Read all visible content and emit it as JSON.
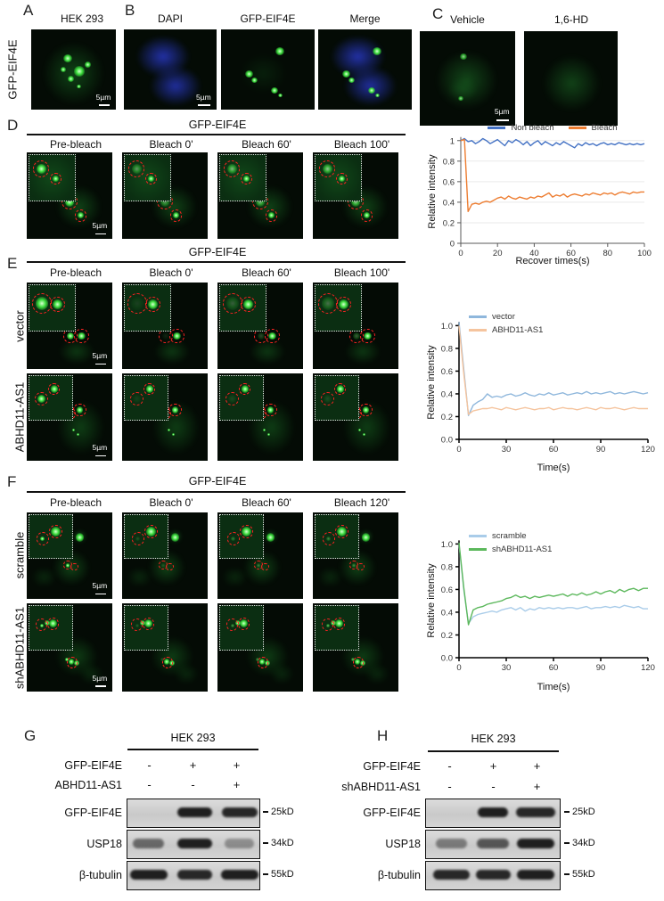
{
  "figure": {
    "scale_bar_label": "5µm",
    "colors": {
      "gfp_green": "#3ede3e",
      "dapi_blue": "#2b3bd0",
      "bleach_ring_red": "#ff2222"
    },
    "panels": {
      "A": {
        "letter": "A",
        "title": "HEK 293",
        "side_label": "GFP-EIF4E",
        "scale_bar": "5µm"
      },
      "B": {
        "letter": "B",
        "titles": [
          "DAPI",
          "GFP-EIF4E",
          "Merge"
        ],
        "scale_bar": "5µm"
      },
      "C": {
        "letter": "C",
        "titles": [
          "Vehicle",
          "1,6-HD"
        ],
        "scale_bar": "5µm"
      },
      "D": {
        "letter": "D",
        "header": "GFP-EIF4E",
        "columns": [
          "Pre-bleach",
          "Bleach 0'",
          "Bleach 60'",
          "Bleach 100'"
        ],
        "scale_bar": "5µm"
      },
      "E": {
        "letter": "E",
        "header": "GFP-EIF4E",
        "columns": [
          "Pre-bleach",
          "Bleach 0'",
          "Bleach 60'",
          "Bleach 100'"
        ],
        "rows": [
          "vector",
          "ABHD11-AS1"
        ],
        "scale_bar": "5µm"
      },
      "F": {
        "letter": "F",
        "header": "GFP-EIF4E",
        "columns": [
          "Pre-bleach",
          "Bleach 0'",
          "Bleach 60'",
          "Bleach 120'"
        ],
        "rows": [
          "scramble",
          "shABHD11-AS1"
        ],
        "scale_bar": "5µm"
      },
      "G": {
        "letter": "G",
        "cell_line": "HEK 293",
        "conditions": [
          {
            "label": "GFP-EIF4E",
            "values": [
              "-",
              "+",
              "+"
            ]
          },
          {
            "label": "ABHD11-AS1",
            "values": [
              "-",
              "-",
              "+"
            ]
          }
        ],
        "strips": [
          {
            "label": "GFP-EIF4E",
            "marker": "25kD",
            "lanes": [
              [
                0,
                0
              ],
              [
                0.95,
                1.0
              ],
              [
                0.9,
                1.05
              ]
            ]
          },
          {
            "label": "USP18",
            "marker": "34kD",
            "lanes": [
              [
                0.55,
                0.9
              ],
              [
                0.95,
                1.0
              ],
              [
                0.35,
                0.85
              ]
            ]
          },
          {
            "label": "β-tubulin",
            "marker": "55kD",
            "lanes": [
              [
                0.95,
                1.1
              ],
              [
                0.9,
                1.0
              ],
              [
                0.95,
                1.1
              ]
            ]
          }
        ]
      },
      "H": {
        "letter": "H",
        "cell_line": "HEK 293",
        "conditions": [
          {
            "label": "GFP-EIF4E",
            "values": [
              "-",
              "+",
              "+"
            ]
          },
          {
            "label": "shABHD11-AS1",
            "values": [
              "-",
              "-",
              "+"
            ]
          }
        ],
        "strips": [
          {
            "label": "GFP-EIF4E",
            "marker": "25kD",
            "lanes": [
              [
                0,
                0
              ],
              [
                0.95,
                0.85
              ],
              [
                0.9,
                1.15
              ]
            ]
          },
          {
            "label": "USP18",
            "marker": "34kD",
            "lanes": [
              [
                0.45,
                0.9
              ],
              [
                0.65,
                0.9
              ],
              [
                0.95,
                1.1
              ]
            ]
          },
          {
            "label": "β-tubulin",
            "marker": "55kD",
            "lanes": [
              [
                0.9,
                1.05
              ],
              [
                0.9,
                1.0
              ],
              [
                0.95,
                1.1
              ]
            ]
          }
        ]
      }
    }
  },
  "chart_data": [
    {
      "type": "line",
      "title": "",
      "xlabel": "Recover times(s)",
      "ylabel": "Relative intensity",
      "xlim": [
        0,
        100
      ],
      "ylim": [
        0,
        1.05
      ],
      "xticks": [
        0,
        20,
        40,
        60,
        80,
        100
      ],
      "yticks": [
        0,
        0.2,
        0.4,
        0.6,
        0.8,
        1
      ],
      "ytick_labels": [
        "0",
        "0.2",
        "0.4",
        "0.6",
        "0.8",
        "1"
      ],
      "grid": true,
      "legend_position": "top",
      "x_start": 0,
      "x_step": 2,
      "series": [
        {
          "name": "Non bleach",
          "color": "#4472C4",
          "values": [
            1.0,
            1.02,
            0.99,
            1.0,
            0.97,
            0.99,
            1.02,
            1.0,
            0.97,
            0.99,
            1.01,
            0.98,
            0.95,
            1.0,
            0.98,
            1.01,
            0.99,
            0.96,
            0.99,
            0.95,
            0.98,
            1.0,
            0.96,
            0.99,
            0.97,
            0.95,
            0.98,
            0.96,
            0.99,
            0.97,
            0.95,
            0.93,
            0.97,
            0.95,
            0.98,
            0.96,
            0.97,
            0.95,
            0.97,
            0.98,
            0.96,
            0.97,
            0.96,
            0.98,
            0.97,
            0.96,
            0.97,
            0.96,
            0.97,
            0.96,
            0.97
          ]
        },
        {
          "name": "Bleach",
          "color": "#ED7D31",
          "values": [
            1.0,
            1.01,
            0.31,
            0.38,
            0.39,
            0.38,
            0.4,
            0.41,
            0.4,
            0.42,
            0.44,
            0.45,
            0.43,
            0.46,
            0.44,
            0.43,
            0.45,
            0.44,
            0.43,
            0.45,
            0.44,
            0.46,
            0.45,
            0.47,
            0.49,
            0.45,
            0.47,
            0.46,
            0.48,
            0.45,
            0.47,
            0.48,
            0.47,
            0.46,
            0.48,
            0.47,
            0.49,
            0.48,
            0.47,
            0.49,
            0.48,
            0.49,
            0.47,
            0.49,
            0.5,
            0.49,
            0.48,
            0.5,
            0.49,
            0.5,
            0.5
          ]
        }
      ]
    },
    {
      "type": "line",
      "title": "",
      "xlabel": "Time(s)",
      "ylabel": "Relative intensity",
      "xlim": [
        0,
        120
      ],
      "ylim": [
        0,
        1.05
      ],
      "xticks": [
        0,
        30,
        60,
        90,
        120
      ],
      "yticks": [
        0,
        0.2,
        0.4,
        0.6,
        0.8,
        1
      ],
      "ytick_labels": [
        "0.0",
        "0.2",
        "0.4",
        "0.6",
        "0.8",
        "1.0"
      ],
      "grid": false,
      "legend_position": "inside-top-left",
      "x_start": 0,
      "x_step": 3,
      "series": [
        {
          "name": "vector",
          "color": "#8FB7DC",
          "values": [
            1.03,
            0.62,
            0.21,
            0.3,
            0.33,
            0.35,
            0.4,
            0.37,
            0.38,
            0.37,
            0.39,
            0.4,
            0.38,
            0.39,
            0.41,
            0.39,
            0.38,
            0.4,
            0.39,
            0.41,
            0.39,
            0.4,
            0.41,
            0.39,
            0.4,
            0.41,
            0.4,
            0.42,
            0.4,
            0.41,
            0.4,
            0.41,
            0.42,
            0.4,
            0.41,
            0.4,
            0.41,
            0.42,
            0.41,
            0.4,
            0.41
          ]
        },
        {
          "name": "ABHD11-AS1",
          "color": "#F5C49E",
          "values": [
            1.0,
            0.58,
            0.22,
            0.25,
            0.26,
            0.27,
            0.27,
            0.28,
            0.27,
            0.26,
            0.28,
            0.27,
            0.26,
            0.27,
            0.28,
            0.27,
            0.26,
            0.27,
            0.27,
            0.28,
            0.26,
            0.27,
            0.28,
            0.27,
            0.27,
            0.26,
            0.27,
            0.28,
            0.27,
            0.26,
            0.28,
            0.27,
            0.27,
            0.28,
            0.27,
            0.26,
            0.27,
            0.28,
            0.27,
            0.27,
            0.27
          ]
        }
      ]
    },
    {
      "type": "line",
      "title": "",
      "xlabel": "Time(s)",
      "ylabel": "Relative intensity",
      "xlim": [
        0,
        120
      ],
      "ylim": [
        0,
        1.05
      ],
      "xticks": [
        0,
        30,
        60,
        90,
        120
      ],
      "yticks": [
        0,
        0.2,
        0.4,
        0.6,
        0.8,
        1
      ],
      "ytick_labels": [
        "0.0",
        "0.2",
        "0.4",
        "0.6",
        "0.8",
        "1.0"
      ],
      "grid": false,
      "legend_position": "inside-top-left",
      "x_start": 0,
      "x_step": 3,
      "series": [
        {
          "name": "scramble",
          "color": "#A9CCE9",
          "values": [
            1.0,
            0.6,
            0.3,
            0.36,
            0.38,
            0.39,
            0.4,
            0.41,
            0.4,
            0.42,
            0.43,
            0.44,
            0.42,
            0.44,
            0.41,
            0.43,
            0.42,
            0.44,
            0.43,
            0.44,
            0.43,
            0.44,
            0.43,
            0.44,
            0.44,
            0.43,
            0.44,
            0.45,
            0.43,
            0.44,
            0.44,
            0.45,
            0.44,
            0.45,
            0.44,
            0.46,
            0.45,
            0.44,
            0.45,
            0.43,
            0.43
          ]
        },
        {
          "name": "shABHD11-AS1",
          "color": "#5CB85C",
          "values": [
            1.01,
            0.62,
            0.29,
            0.42,
            0.44,
            0.45,
            0.47,
            0.48,
            0.49,
            0.5,
            0.52,
            0.53,
            0.55,
            0.53,
            0.54,
            0.52,
            0.54,
            0.53,
            0.54,
            0.55,
            0.54,
            0.55,
            0.56,
            0.54,
            0.56,
            0.55,
            0.57,
            0.55,
            0.56,
            0.58,
            0.56,
            0.58,
            0.59,
            0.57,
            0.6,
            0.58,
            0.6,
            0.61,
            0.59,
            0.61,
            0.61
          ]
        }
      ]
    }
  ]
}
